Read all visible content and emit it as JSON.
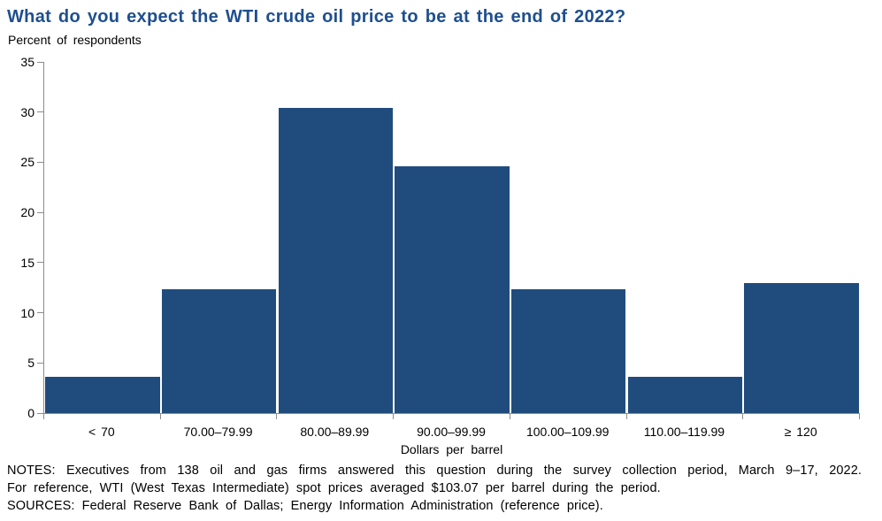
{
  "title": "What do you expect the WTI crude oil price to be at the end of 2022?",
  "subtitle": "Percent of respondents",
  "chart_data": {
    "type": "bar",
    "title": "What do you expect the WTI crude oil price to be at the end of 2022?",
    "categories": [
      "< 70",
      "70.00–79.99",
      "80.00–89.99",
      "90.00–99.99",
      "100.00–109.99",
      "110.00–119.99",
      "≥ 120"
    ],
    "values": [
      3.6,
      12.3,
      30.4,
      24.6,
      12.3,
      3.6,
      13.0
    ],
    "xlabel": "Dollars per barrel",
    "ylabel": "Percent of respondents",
    "ylim": [
      0,
      35
    ],
    "yticks": [
      0,
      5,
      10,
      15,
      20,
      25,
      30,
      35
    ],
    "grid": false,
    "legend": false,
    "bar_color": "#204C7D"
  },
  "notes": {
    "line1": "NOTES: Executives from 138 oil and gas firms answered this question during the survey collection period, March 9–17, 2022.",
    "line2": "For reference, WTI (West Texas Intermediate) spot prices averaged $103.07 per barrel during the period.",
    "line3": "SOURCES: Federal Reserve Bank of Dallas; Energy Information Administration (reference price)."
  },
  "colors": {
    "title": "#1E4F8F",
    "bar": "#204C7D",
    "axis": "#8C8C8C",
    "text": "#000000"
  }
}
